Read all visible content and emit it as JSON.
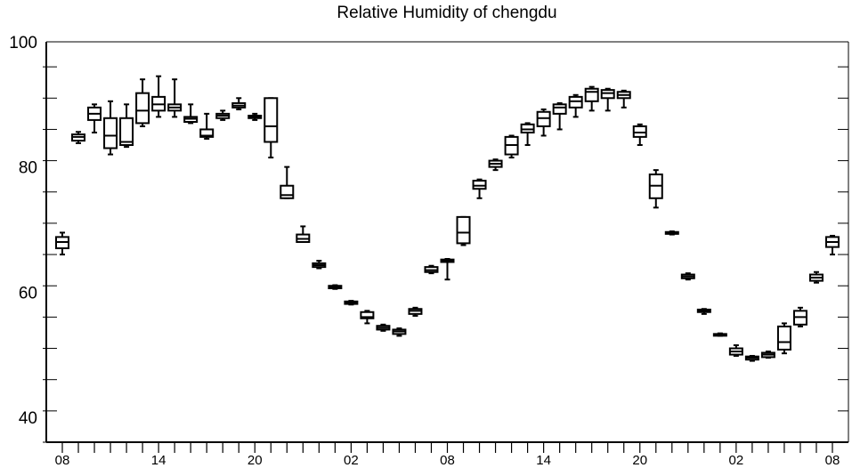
{
  "chart_data": {
    "type": "boxplot",
    "title": "Relative Humidity of chengdu",
    "xlabel": "",
    "ylabel": "",
    "ylim": [
      36,
      100
    ],
    "yticks_labeled": [
      40,
      60,
      80,
      100
    ],
    "xtick_labels": [
      "08",
      "14",
      "20",
      "02",
      "08",
      "14",
      "20",
      "02",
      "08"
    ],
    "grid": false,
    "series": [
      {
        "x": 0,
        "min": 66.0,
        "q1": 67.0,
        "median": 68.0,
        "q3": 68.8,
        "max": 69.5
      },
      {
        "x": 1,
        "min": 83.8,
        "q1": 84.2,
        "median": 84.8,
        "q3": 85.2,
        "max": 85.6
      },
      {
        "x": 2,
        "min": 85.5,
        "q1": 87.5,
        "median": 88.5,
        "q3": 89.5,
        "max": 90.0
      },
      {
        "x": 3,
        "min": 82.0,
        "q1": 83.0,
        "median": 85.0,
        "q3": 87.8,
        "max": 90.5
      },
      {
        "x": 4,
        "min": 83.2,
        "q1": 83.5,
        "median": 84.0,
        "q3": 87.8,
        "max": 90.0
      },
      {
        "x": 5,
        "min": 86.5,
        "q1": 87.0,
        "median": 89.0,
        "q3": 91.8,
        "max": 94.0
      },
      {
        "x": 6,
        "min": 88.0,
        "q1": 89.0,
        "median": 90.0,
        "q3": 91.2,
        "max": 94.5
      },
      {
        "x": 7,
        "min": 88.0,
        "q1": 89.0,
        "median": 89.5,
        "q3": 90.0,
        "max": 94.0
      },
      {
        "x": 8,
        "min": 87.0,
        "q1": 87.2,
        "median": 87.7,
        "q3": 88.0,
        "max": 90.0
      },
      {
        "x": 9,
        "min": 84.5,
        "q1": 84.8,
        "median": 85.0,
        "q3": 86.0,
        "max": 88.5
      },
      {
        "x": 10,
        "min": 87.5,
        "q1": 87.8,
        "median": 88.2,
        "q3": 88.5,
        "max": 89.0
      },
      {
        "x": 11,
        "min": 89.2,
        "q1": 89.5,
        "median": 89.8,
        "q3": 90.2,
        "max": 91.0
      },
      {
        "x": 12,
        "min": 87.5,
        "q1": 87.8,
        "median": 88.0,
        "q3": 88.2,
        "max": 88.5
      },
      {
        "x": 13,
        "min": 81.5,
        "q1": 84.0,
        "median": 86.5,
        "q3": 91.0,
        "max": 91.0
      },
      {
        "x": 14,
        "min": 75.0,
        "q1": 75.0,
        "median": 75.5,
        "q3": 77.0,
        "max": 80.0
      },
      {
        "x": 15,
        "min": 68.0,
        "q1": 68.0,
        "median": 68.5,
        "q3": 69.2,
        "max": 70.5
      },
      {
        "x": 16,
        "min": 63.8,
        "q1": 64.0,
        "median": 64.3,
        "q3": 64.6,
        "max": 65.0
      },
      {
        "x": 17,
        "min": 60.5,
        "q1": 60.6,
        "median": 60.8,
        "q3": 61.0,
        "max": 61.1
      },
      {
        "x": 18,
        "min": 58.0,
        "q1": 58.1,
        "median": 58.3,
        "q3": 58.5,
        "max": 58.6
      },
      {
        "x": 19,
        "min": 55.0,
        "q1": 55.8,
        "median": 56.0,
        "q3": 56.8,
        "max": 57.0
      },
      {
        "x": 20,
        "min": 53.8,
        "q1": 54.0,
        "median": 54.3,
        "q3": 54.6,
        "max": 54.8
      },
      {
        "x": 21,
        "min": 53.0,
        "q1": 53.3,
        "median": 53.7,
        "q3": 54.0,
        "max": 54.2
      },
      {
        "x": 22,
        "min": 56.2,
        "q1": 56.5,
        "median": 57.0,
        "q3": 57.3,
        "max": 57.5
      },
      {
        "x": 23,
        "min": 63.0,
        "q1": 63.2,
        "median": 63.5,
        "q3": 64.0,
        "max": 64.2
      },
      {
        "x": 24,
        "min": 62.0,
        "q1": 64.8,
        "median": 65.0,
        "q3": 65.2,
        "max": 65.3
      },
      {
        "x": 25,
        "min": 67.5,
        "q1": 67.8,
        "median": 69.5,
        "q3": 72.0,
        "max": 72.0
      },
      {
        "x": 26,
        "min": 75.0,
        "q1": 76.5,
        "median": 77.0,
        "q3": 77.8,
        "max": 78.0
      },
      {
        "x": 27,
        "min": 79.5,
        "q1": 80.0,
        "median": 80.5,
        "q3": 81.0,
        "max": 81.2
      },
      {
        "x": 28,
        "min": 81.5,
        "q1": 82.0,
        "median": 83.5,
        "q3": 84.8,
        "max": 85.0
      },
      {
        "x": 29,
        "min": 83.5,
        "q1": 85.5,
        "median": 86.0,
        "q3": 86.8,
        "max": 87.0
      },
      {
        "x": 30,
        "min": 85.0,
        "q1": 86.5,
        "median": 87.8,
        "q3": 88.8,
        "max": 89.2
      },
      {
        "x": 31,
        "min": 86.0,
        "q1": 88.5,
        "median": 89.5,
        "q3": 90.0,
        "max": 90.2
      },
      {
        "x": 32,
        "min": 88.0,
        "q1": 89.5,
        "median": 90.5,
        "q3": 91.2,
        "max": 91.5
      },
      {
        "x": 33,
        "min": 89.0,
        "q1": 90.5,
        "median": 92.0,
        "q3": 92.5,
        "max": 92.8
      },
      {
        "x": 34,
        "min": 89.0,
        "q1": 91.0,
        "median": 91.8,
        "q3": 92.3,
        "max": 92.5
      },
      {
        "x": 35,
        "min": 89.5,
        "q1": 91.0,
        "median": 91.5,
        "q3": 92.0,
        "max": 92.2
      },
      {
        "x": 36,
        "min": 83.5,
        "q1": 84.8,
        "median": 85.5,
        "q3": 86.5,
        "max": 86.8
      },
      {
        "x": 37,
        "min": 73.5,
        "q1": 75.0,
        "median": 77.0,
        "q3": 78.8,
        "max": 79.5
      },
      {
        "x": 38,
        "min": 69.2,
        "q1": 69.3,
        "median": 69.5,
        "q3": 69.6,
        "max": 69.7
      },
      {
        "x": 39,
        "min": 62.0,
        "q1": 62.2,
        "median": 62.5,
        "q3": 62.8,
        "max": 63.0
      },
      {
        "x": 40,
        "min": 56.5,
        "q1": 56.8,
        "median": 57.0,
        "q3": 57.2,
        "max": 57.3
      },
      {
        "x": 41,
        "min": 53.0,
        "q1": 53.1,
        "median": 53.2,
        "q3": 53.3,
        "max": 53.4
      },
      {
        "x": 42,
        "min": 49.8,
        "q1": 50.0,
        "median": 50.5,
        "q3": 51.0,
        "max": 51.5
      },
      {
        "x": 43,
        "min": 49.0,
        "q1": 49.2,
        "median": 49.5,
        "q3": 49.7,
        "max": 49.8
      },
      {
        "x": 44,
        "min": 49.5,
        "q1": 49.6,
        "median": 50.0,
        "q3": 50.3,
        "max": 50.5
      },
      {
        "x": 45,
        "min": 50.2,
        "q1": 50.8,
        "median": 52.0,
        "q3": 54.5,
        "max": 55.0
      },
      {
        "x": 46,
        "min": 54.5,
        "q1": 54.8,
        "median": 56.0,
        "q3": 57.0,
        "max": 57.5
      },
      {
        "x": 47,
        "min": 61.5,
        "q1": 61.8,
        "median": 62.3,
        "q3": 62.8,
        "max": 63.2
      },
      {
        "x": 48,
        "min": 66.0,
        "q1": 67.2,
        "median": 68.0,
        "q3": 68.8,
        "max": 69.0
      }
    ]
  }
}
